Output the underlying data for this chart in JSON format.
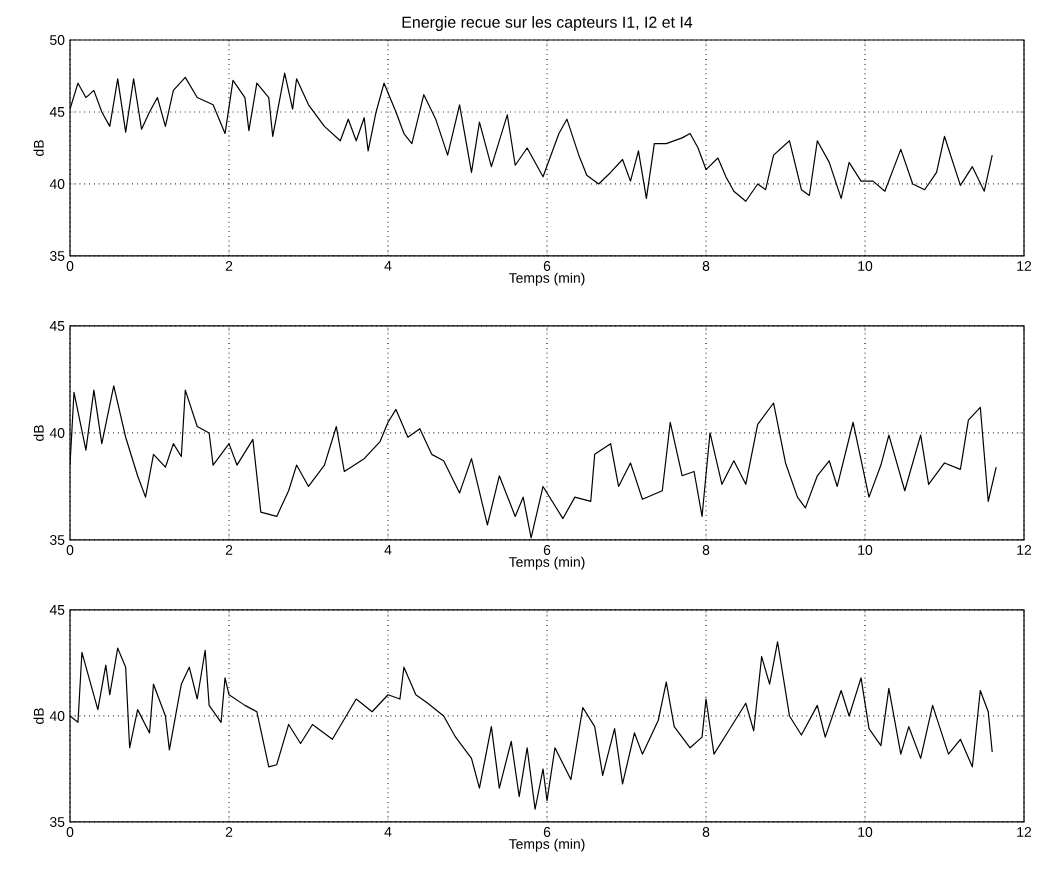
{
  "chart_data": [
    {
      "type": "line",
      "title": "Energie recue sur les capteurs I1, I2 et I4",
      "xlabel": "Temps (min)",
      "ylabel": "dB",
      "xlim": [
        0,
        12
      ],
      "ylim": [
        35,
        50
      ],
      "xticks": [
        0,
        2,
        4,
        6,
        8,
        10,
        12
      ],
      "yticks": [
        35,
        40,
        45,
        50
      ],
      "grid": true,
      "line_style": "solid",
      "color": "#000000",
      "x": [
        0,
        0.1,
        0.2,
        0.3,
        0.4,
        0.5,
        0.6,
        0.7,
        0.8,
        0.9,
        1.0,
        1.1,
        1.2,
        1.3,
        1.45,
        1.6,
        1.8,
        1.95,
        2.05,
        2.2,
        2.25,
        2.35,
        2.5,
        2.55,
        2.7,
        2.8,
        2.85,
        3.0,
        3.2,
        3.4,
        3.5,
        3.6,
        3.7,
        3.75,
        3.85,
        3.95,
        4.1,
        4.2,
        4.3,
        4.45,
        4.6,
        4.75,
        4.9,
        5.05,
        5.15,
        5.3,
        5.5,
        5.6,
        5.75,
        5.95,
        6.15,
        6.25,
        6.4,
        6.5,
        6.65,
        6.8,
        6.95,
        7.05,
        7.15,
        7.25,
        7.35,
        7.5,
        7.7,
        7.8,
        7.9,
        8.0,
        8.15,
        8.25,
        8.35,
        8.5,
        8.65,
        8.75,
        8.85,
        9.05,
        9.2,
        9.3,
        9.4,
        9.55,
        9.7,
        9.8,
        9.95,
        10.1,
        10.25,
        10.45,
        10.6,
        10.75,
        10.9,
        11.0,
        11.2,
        11.35,
        11.5,
        11.6
      ],
      "values": [
        45.2,
        47,
        46,
        46.5,
        45,
        44,
        47.3,
        43.6,
        47.3,
        43.8,
        45,
        46,
        44,
        46.5,
        47.4,
        46,
        45.5,
        43.5,
        47.2,
        46,
        43.7,
        47,
        46,
        43.3,
        47.7,
        45.2,
        47.3,
        45.5,
        44,
        43,
        44.5,
        43,
        44.6,
        42.3,
        45,
        47,
        45,
        43.5,
        42.8,
        46.2,
        44.5,
        42,
        45.5,
        40.8,
        44.3,
        41.2,
        44.8,
        41.3,
        42.5,
        40.5,
        43.5,
        44.5,
        42,
        40.6,
        40,
        40.8,
        41.7,
        40.2,
        42.3,
        39,
        42.8,
        42.8,
        43.2,
        43.5,
        42.5,
        41,
        41.8,
        40.5,
        39.5,
        38.8,
        40,
        39.6,
        42,
        43,
        39.6,
        39.2,
        43,
        41.5,
        39,
        41.5,
        40.2,
        40.2,
        39.5,
        42.4,
        40,
        39.6,
        40.8,
        43.3,
        39.9,
        41.2,
        39.5,
        42
      ]
    },
    {
      "type": "line",
      "xlabel": "Temps (min)",
      "ylabel": "dB",
      "xlim": [
        0,
        12
      ],
      "ylim": [
        35,
        45
      ],
      "xticks": [
        0,
        2,
        4,
        6,
        8,
        10,
        12
      ],
      "yticks": [
        35,
        40,
        45
      ],
      "grid": true,
      "line_style": "solid",
      "color": "#000000",
      "x": [
        0,
        0.05,
        0.2,
        0.3,
        0.4,
        0.55,
        0.7,
        0.85,
        0.95,
        1.05,
        1.2,
        1.3,
        1.4,
        1.45,
        1.6,
        1.75,
        1.8,
        2.0,
        2.1,
        2.3,
        2.4,
        2.6,
        2.75,
        2.85,
        3.0,
        3.2,
        3.35,
        3.45,
        3.7,
        3.9,
        4.0,
        4.1,
        4.25,
        4.4,
        4.55,
        4.7,
        4.9,
        5.05,
        5.25,
        5.4,
        5.6,
        5.7,
        5.8,
        5.95,
        6.2,
        6.35,
        6.55,
        6.6,
        6.8,
        6.9,
        7.05,
        7.2,
        7.45,
        7.55,
        7.7,
        7.85,
        7.95,
        8.05,
        8.2,
        8.35,
        8.5,
        8.65,
        8.85,
        9.0,
        9.15,
        9.25,
        9.4,
        9.55,
        9.65,
        9.85,
        10.05,
        10.2,
        10.3,
        10.5,
        10.7,
        10.8,
        11.0,
        11.2,
        11.3,
        11.45,
        11.55,
        11.65
      ],
      "values": [
        38.5,
        41.9,
        39.2,
        42,
        39.5,
        42.2,
        39.8,
        38,
        37,
        39,
        38.4,
        39.5,
        38.9,
        42,
        40.3,
        40,
        38.5,
        39.5,
        38.5,
        39.7,
        36.3,
        36.1,
        37.3,
        38.5,
        37.5,
        38.5,
        40.3,
        38.2,
        38.8,
        39.6,
        40.5,
        41.1,
        39.8,
        40.2,
        39,
        38.7,
        37.2,
        38.8,
        35.7,
        38,
        36.1,
        37,
        35.1,
        37.5,
        36,
        37,
        36.8,
        39,
        39.5,
        37.5,
        38.6,
        36.9,
        37.3,
        40.5,
        38,
        38.2,
        36.1,
        40,
        37.6,
        38.7,
        37.6,
        40.4,
        41.4,
        38.6,
        37,
        36.5,
        38,
        38.7,
        37.5,
        40.5,
        37,
        38.5,
        39.9,
        37.3,
        39.9,
        37.6,
        38.6,
        38.3,
        40.6,
        41.2,
        36.8,
        38.4
      ]
    },
    {
      "type": "line",
      "xlabel": "Temps (min)",
      "ylabel": "dB",
      "xlim": [
        0,
        12
      ],
      "ylim": [
        35,
        45
      ],
      "xticks": [
        0,
        2,
        4,
        6,
        8,
        10,
        12
      ],
      "yticks": [
        35,
        40,
        45
      ],
      "grid": true,
      "line_style": "solid",
      "color": "#000000",
      "x": [
        0,
        0.1,
        0.15,
        0.35,
        0.45,
        0.5,
        0.6,
        0.7,
        0.75,
        0.85,
        1.0,
        1.05,
        1.2,
        1.25,
        1.4,
        1.5,
        1.6,
        1.7,
        1.75,
        1.9,
        1.95,
        2.0,
        2.2,
        2.35,
        2.5,
        2.6,
        2.75,
        2.9,
        3.05,
        3.3,
        3.6,
        3.8,
        4.0,
        4.15,
        4.2,
        4.35,
        4.5,
        4.7,
        4.85,
        5.05,
        5.15,
        5.3,
        5.4,
        5.55,
        5.65,
        5.75,
        5.85,
        5.95,
        6.0,
        6.1,
        6.3,
        6.45,
        6.6,
        6.7,
        6.85,
        6.95,
        7.1,
        7.2,
        7.4,
        7.5,
        7.6,
        7.8,
        7.95,
        8.0,
        8.1,
        8.3,
        8.5,
        8.6,
        8.7,
        8.8,
        8.9,
        9.05,
        9.2,
        9.4,
        9.5,
        9.7,
        9.8,
        9.95,
        10.05,
        10.2,
        10.3,
        10.45,
        10.55,
        10.7,
        10.85,
        11.05,
        11.2,
        11.35,
        11.45,
        11.55,
        11.6
      ],
      "values": [
        40,
        39.7,
        43,
        40.3,
        42.4,
        41,
        43.2,
        42.3,
        38.5,
        40.3,
        39.2,
        41.5,
        40,
        38.4,
        41.5,
        42.3,
        40.8,
        43.1,
        40.5,
        39.7,
        41.8,
        41,
        40.5,
        40.2,
        37.6,
        37.7,
        39.6,
        38.7,
        39.6,
        38.9,
        40.8,
        40.2,
        41,
        40.8,
        42.3,
        41,
        40.6,
        40,
        39,
        38,
        36.6,
        39.5,
        36.6,
        38.8,
        36.2,
        38.5,
        35.6,
        37.5,
        36,
        38.5,
        37,
        40.4,
        39.5,
        37.2,
        39.4,
        36.8,
        39.2,
        38.2,
        39.8,
        41.6,
        39.5,
        38.5,
        39,
        40.8,
        38.2,
        39.4,
        40.6,
        39.3,
        42.8,
        41.5,
        43.5,
        40,
        39.1,
        40.5,
        39,
        41.2,
        40,
        41.8,
        39.4,
        38.6,
        41.3,
        38.2,
        39.5,
        38,
        40.5,
        38.2,
        38.9,
        37.6,
        41.2,
        40.2,
        38.3
      ]
    }
  ]
}
